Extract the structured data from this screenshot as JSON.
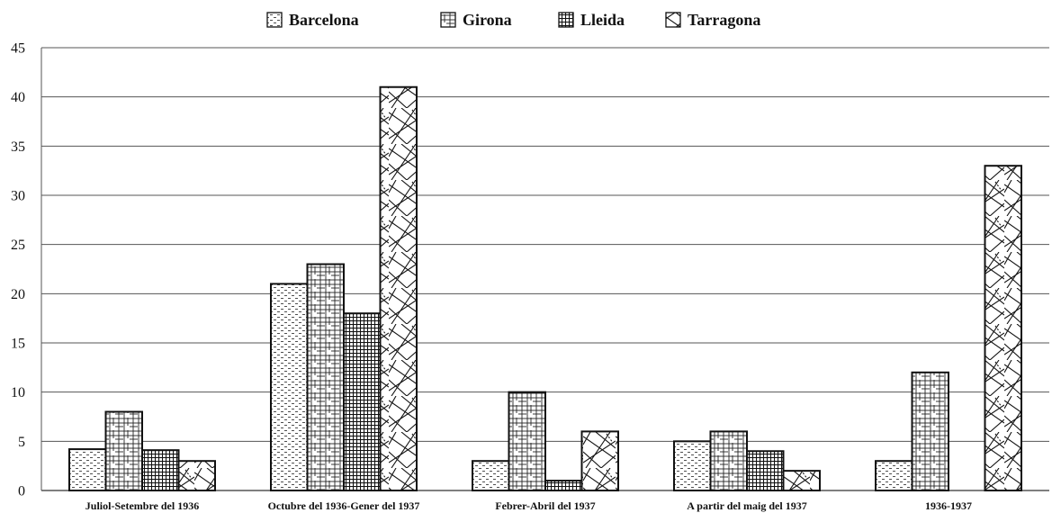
{
  "chart_data": {
    "type": "bar",
    "categories": [
      "Juliol-Setembre del 1936",
      "Octubre del 1936-Gener del 1937",
      "Febrer-Abril del 1937",
      "A partir del maig del 1937",
      "1936-1937"
    ],
    "series": [
      {
        "name": "Barcelona",
        "pattern": "dashes",
        "values": [
          4.2,
          21,
          3,
          5,
          3
        ]
      },
      {
        "name": "Girona",
        "pattern": "grid-irregular",
        "values": [
          8,
          23,
          10,
          6,
          12
        ]
      },
      {
        "name": "Lleida",
        "pattern": "grid-dense",
        "values": [
          4.1,
          18,
          1,
          4,
          0
        ]
      },
      {
        "name": "Tarragona",
        "pattern": "crosshatch",
        "values": [
          3,
          41,
          6,
          2,
          33
        ]
      }
    ],
    "ylim": [
      0,
      45
    ],
    "yticks": [
      "0",
      "5",
      "10",
      "15",
      "20",
      "25",
      "30",
      "35",
      "40",
      "45"
    ],
    "grid": true,
    "legend_position": "top-center",
    "colors": {
      "stroke": "#111111",
      "grid": "#555555",
      "background": "#ffffff"
    }
  }
}
